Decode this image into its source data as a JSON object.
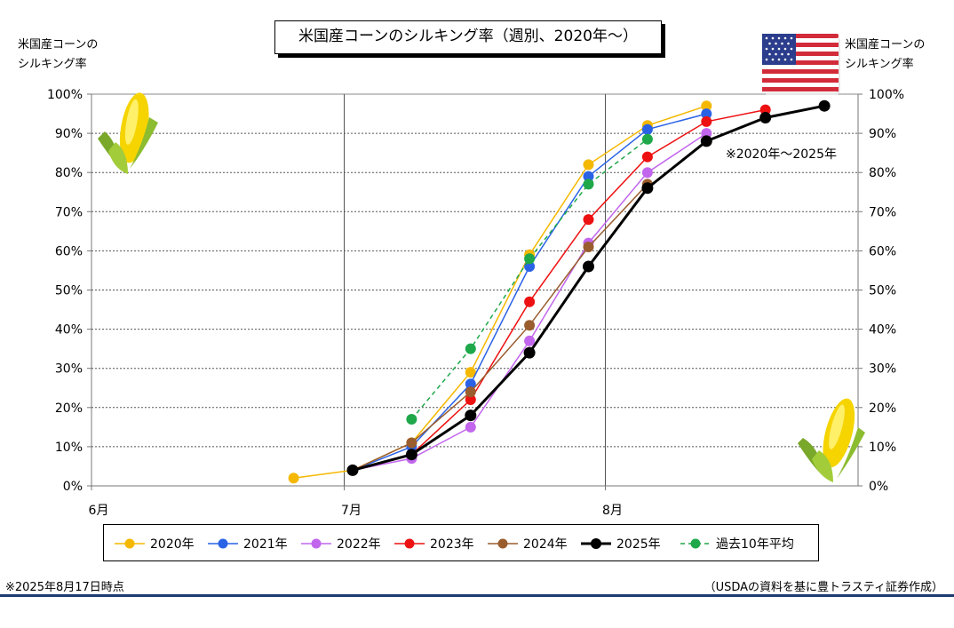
{
  "title": "米国産コーンのシルキング率（週別、2020年～）",
  "y_axis_caption_left": [
    "米国産コーンの",
    "シルキング率"
  ],
  "y_axis_caption_right": [
    "米国産コーンの",
    "シルキング率"
  ],
  "note_period": "※2020年～2025年",
  "footnote_date": "※2025年8月17日時点",
  "footnote_source": "（USDAの資料を基に豊トラスティ証券作成）",
  "icons": {
    "corn_left": "corn-icon",
    "corn_right": "corn-icon",
    "flag": "us-flag-icon"
  },
  "chart_data": {
    "type": "line",
    "x_tick_labels": [
      "6月",
      "7月",
      "8月"
    ],
    "x_tick_dates": [
      "2024-06-01",
      "2024-07-01",
      "2024-08-01"
    ],
    "x_range": [
      "2024-06-01",
      "2024-08-31"
    ],
    "y_tick_labels": [
      "0%",
      "10%",
      "20%",
      "30%",
      "40%",
      "50%",
      "60%",
      "70%",
      "80%",
      "90%",
      "100%"
    ],
    "ylim": [
      0,
      100
    ],
    "y_unit": "%",
    "grid": true,
    "legend_position": "bottom",
    "series": [
      {
        "name": "2020年",
        "color": "#f5b800",
        "dashed": false,
        "width": 1.5,
        "points": [
          [
            "2024-06-25",
            2
          ],
          [
            "2024-07-02",
            4
          ],
          [
            "2024-07-09",
            11
          ],
          [
            "2024-07-16",
            29
          ],
          [
            "2024-07-23",
            59
          ],
          [
            "2024-07-30",
            82
          ],
          [
            "2024-08-06",
            92
          ],
          [
            "2024-08-13",
            97
          ]
        ]
      },
      {
        "name": "2021年",
        "color": "#2a62e6",
        "dashed": false,
        "width": 1.5,
        "points": [
          [
            "2024-07-02",
            4
          ],
          [
            "2024-07-09",
            10
          ],
          [
            "2024-07-16",
            26
          ],
          [
            "2024-07-23",
            56
          ],
          [
            "2024-07-30",
            79
          ],
          [
            "2024-08-06",
            91
          ],
          [
            "2024-08-13",
            95
          ]
        ]
      },
      {
        "name": "2022年",
        "color": "#c266ee",
        "dashed": false,
        "width": 1.5,
        "points": [
          [
            "2024-07-02",
            4
          ],
          [
            "2024-07-09",
            7
          ],
          [
            "2024-07-16",
            15
          ],
          [
            "2024-07-23",
            37
          ],
          [
            "2024-07-30",
            62
          ],
          [
            "2024-08-06",
            80
          ],
          [
            "2024-08-13",
            90
          ]
        ]
      },
      {
        "name": "2023年",
        "color": "#ee1111",
        "dashed": false,
        "width": 1.5,
        "points": [
          [
            "2024-07-02",
            4
          ],
          [
            "2024-07-09",
            8
          ],
          [
            "2024-07-16",
            22
          ],
          [
            "2024-07-23",
            47
          ],
          [
            "2024-07-30",
            68
          ],
          [
            "2024-08-06",
            84
          ],
          [
            "2024-08-13",
            93
          ],
          [
            "2024-08-20",
            96
          ]
        ]
      },
      {
        "name": "2024年",
        "color": "#9a5d2e",
        "dashed": false,
        "width": 1.5,
        "points": [
          [
            "2024-07-02",
            4
          ],
          [
            "2024-07-09",
            11
          ],
          [
            "2024-07-16",
            24
          ],
          [
            "2024-07-23",
            41
          ],
          [
            "2024-07-30",
            61
          ],
          [
            "2024-08-06",
            77
          ]
        ]
      },
      {
        "name": "2025年",
        "color": "#000000",
        "dashed": false,
        "width": 3,
        "points": [
          [
            "2024-07-02",
            4
          ],
          [
            "2024-07-09",
            8
          ],
          [
            "2024-07-16",
            18
          ],
          [
            "2024-07-23",
            34
          ],
          [
            "2024-07-30",
            56
          ],
          [
            "2024-08-06",
            76
          ],
          [
            "2024-08-13",
            88
          ],
          [
            "2024-08-20",
            94
          ],
          [
            "2024-08-27",
            97
          ]
        ]
      },
      {
        "name": "過去10年平均",
        "color": "#1fa84a",
        "dashed": true,
        "width": 1.5,
        "points": [
          [
            "2024-07-09",
            17
          ],
          [
            "2024-07-16",
            35
          ],
          [
            "2024-07-23",
            58
          ],
          [
            "2024-07-30",
            77
          ],
          [
            "2024-08-06",
            88.5
          ]
        ]
      }
    ]
  }
}
